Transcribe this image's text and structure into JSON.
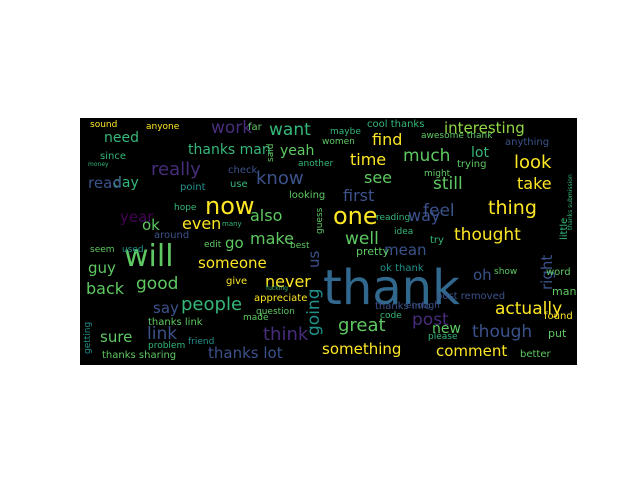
{
  "colors": {
    "background": "#ffffff",
    "cloud_background": "#000000",
    "palette": [
      "#3b528b",
      "#21918c",
      "#5ec962",
      "#fde725",
      "#440154",
      "#31688e",
      "#35b779",
      "#90d743",
      "#472d7b"
    ]
  },
  "words": [
    {
      "text": "thank",
      "color": "#31688e"
    },
    {
      "text": "will",
      "color": "#5ec962"
    },
    {
      "text": "now",
      "color": "#fde725"
    },
    {
      "text": "one",
      "color": "#fde725"
    },
    {
      "text": "know",
      "color": "#3b528b"
    },
    {
      "text": "really",
      "color": "#472d7b"
    },
    {
      "text": "work",
      "color": "#472d7b"
    },
    {
      "text": "want",
      "color": "#35b779"
    },
    {
      "text": "interesting",
      "color": "#90d743"
    },
    {
      "text": "thanks man",
      "color": "#35b779"
    },
    {
      "text": "need",
      "color": "#35b779"
    },
    {
      "text": "time",
      "color": "#fde725"
    },
    {
      "text": "much",
      "color": "#5ec962"
    },
    {
      "text": "find",
      "color": "#fde725"
    },
    {
      "text": "look",
      "color": "#fde725"
    },
    {
      "text": "lot",
      "color": "#35b779"
    },
    {
      "text": "yeah",
      "color": "#5ec962"
    },
    {
      "text": "see",
      "color": "#5ec962"
    },
    {
      "text": "first",
      "color": "#3b528b"
    },
    {
      "text": "way",
      "color": "#3b528b"
    },
    {
      "text": "still",
      "color": "#5ec962"
    },
    {
      "text": "take",
      "color": "#fde725"
    },
    {
      "text": "thing",
      "color": "#fde725"
    },
    {
      "text": "feel",
      "color": "#3b528b"
    },
    {
      "text": "also",
      "color": "#5ec962"
    },
    {
      "text": "even",
      "color": "#fde725"
    },
    {
      "text": "year",
      "color": "#440154"
    },
    {
      "text": "day",
      "color": "#35b779"
    },
    {
      "text": "read",
      "color": "#3b528b"
    },
    {
      "text": "make",
      "color": "#5ec962"
    },
    {
      "text": "never",
      "color": "#fde725"
    },
    {
      "text": "well",
      "color": "#5ec962"
    },
    {
      "text": "thought",
      "color": "#fde725"
    },
    {
      "text": "mean",
      "color": "#3b528b"
    },
    {
      "text": "go",
      "color": "#5ec962"
    },
    {
      "text": "guy",
      "color": "#5ec962"
    },
    {
      "text": "someone",
      "color": "#fde725"
    },
    {
      "text": "back",
      "color": "#5ec962"
    },
    {
      "text": "good",
      "color": "#5ec962"
    },
    {
      "text": "say",
      "color": "#3b528b"
    },
    {
      "text": "people",
      "color": "#35b779"
    },
    {
      "text": "sure",
      "color": "#5ec962"
    },
    {
      "text": "link",
      "color": "#3b528b"
    },
    {
      "text": "think",
      "color": "#472d7b"
    },
    {
      "text": "great",
      "color": "#5ec962"
    },
    {
      "text": "post",
      "color": "#472d7b"
    },
    {
      "text": "actually",
      "color": "#fde725"
    },
    {
      "text": "though",
      "color": "#3b528b"
    },
    {
      "text": "thanks lot",
      "color": "#3b528b"
    },
    {
      "text": "something",
      "color": "#fde725"
    },
    {
      "text": "comment",
      "color": "#fde725"
    },
    {
      "text": "new",
      "color": "#5ec962"
    },
    {
      "text": "ok",
      "color": "#5ec962"
    },
    {
      "text": "going",
      "color": "#21918c"
    },
    {
      "text": "us",
      "color": "#3b528b"
    },
    {
      "text": "oh",
      "color": "#3b528b"
    },
    {
      "text": "right",
      "color": "#3b528b"
    },
    {
      "text": "pretty",
      "color": "#5ec962"
    },
    {
      "text": "ok thank",
      "color": "#21918c"
    },
    {
      "text": "thanks sharing",
      "color": "#5ec962"
    },
    {
      "text": "thanks link",
      "color": "#5ec962"
    },
    {
      "text": "cool thanks",
      "color": "#35b779"
    },
    {
      "text": "awesome thank",
      "color": "#5ec962"
    },
    {
      "text": "trying",
      "color": "#5ec962"
    },
    {
      "text": "anything",
      "color": "#3b528b"
    },
    {
      "text": "thanks info",
      "color": "#3b528b"
    },
    {
      "text": "post removed",
      "color": "#3b528b"
    },
    {
      "text": "another",
      "color": "#35b779"
    },
    {
      "text": "looking",
      "color": "#5ec962"
    },
    {
      "text": "women",
      "color": "#5ec962"
    },
    {
      "text": "maybe",
      "color": "#35b779"
    },
    {
      "text": "check",
      "color": "#3b528b"
    },
    {
      "text": "far",
      "color": "#5ec962"
    },
    {
      "text": "anyone",
      "color": "#fde725"
    },
    {
      "text": "sound",
      "color": "#fde725"
    },
    {
      "text": "since",
      "color": "#35b779"
    },
    {
      "text": "point",
      "color": "#21918c"
    },
    {
      "text": "use",
      "color": "#35b779"
    },
    {
      "text": "reason",
      "color": "#35b779"
    },
    {
      "text": "hope",
      "color": "#35b779"
    },
    {
      "text": "around",
      "color": "#3b528b"
    },
    {
      "text": "edit",
      "color": "#5ec962"
    },
    {
      "text": "seem",
      "color": "#5ec962"
    },
    {
      "text": "used",
      "color": "#21918c"
    },
    {
      "text": "give",
      "color": "#fde725"
    },
    {
      "text": "appreciate",
      "color": "#fde725"
    },
    {
      "text": "question",
      "color": "#5ec962"
    },
    {
      "text": "made",
      "color": "#5ec962"
    },
    {
      "text": "friend",
      "color": "#21918c"
    },
    {
      "text": "problem",
      "color": "#35b779"
    },
    {
      "text": "game",
      "color": "#3b528b"
    },
    {
      "text": "shit",
      "color": "#35b779"
    },
    {
      "text": "getting",
      "color": "#21918c"
    },
    {
      "text": "better",
      "color": "#5ec962"
    },
    {
      "text": "found",
      "color": "#fde725"
    },
    {
      "text": "word",
      "color": "#5ec962"
    },
    {
      "text": "man",
      "color": "#5ec962"
    },
    {
      "text": "put",
      "color": "#5ec962"
    },
    {
      "text": "show",
      "color": "#5ec962"
    },
    {
      "text": "nice",
      "color": "#5ec962"
    },
    {
      "text": "please",
      "color": "#35b779"
    },
    {
      "text": "code",
      "color": "#35b779"
    },
    {
      "text": "enough",
      "color": "#3b528b"
    },
    {
      "text": "idea",
      "color": "#35b779"
    },
    {
      "text": "reading",
      "color": "#35b779"
    },
    {
      "text": "try",
      "color": "#35b779"
    },
    {
      "text": "might",
      "color": "#5ec962"
    },
    {
      "text": "best",
      "color": "#5ec962"
    },
    {
      "text": "said",
      "color": "#5ec962"
    },
    {
      "text": "guess",
      "color": "#5ec962"
    },
    {
      "text": "little",
      "color": "#35b779"
    },
    {
      "text": "thanks submission",
      "color": "#35b779"
    },
    {
      "text": "money",
      "color": "#35b779"
    },
    {
      "text": "many",
      "color": "#35b779"
    },
    {
      "text": "fucking",
      "color": "#35b779"
    }
  ]
}
